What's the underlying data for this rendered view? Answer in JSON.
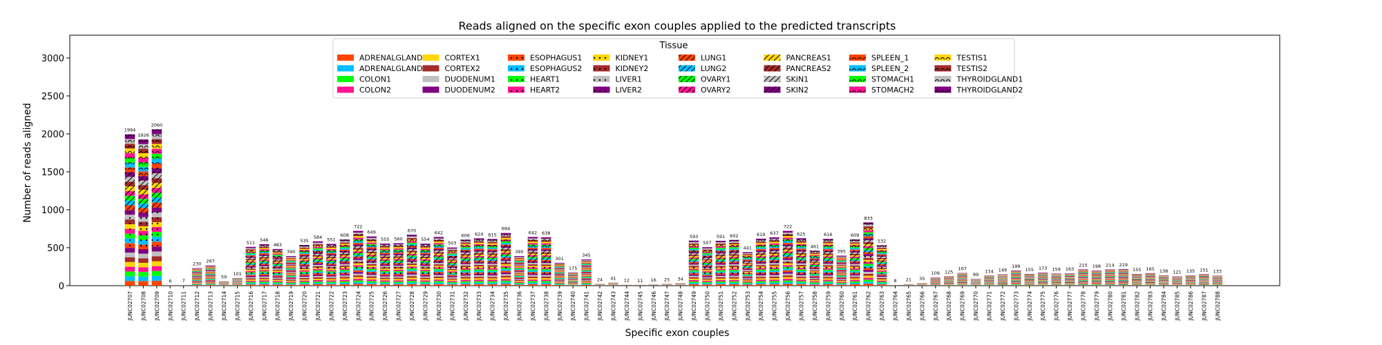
{
  "chart_data": {
    "type": "bar",
    "stacked": true,
    "title": "Reads aligned on the specific exon couples applied to the predicted transcripts",
    "xlabel": "Specific exon couples",
    "ylabel": "Number of reads aligned",
    "ylim": [
      0,
      3300
    ],
    "yticks": [
      0,
      500,
      1000,
      1500,
      2000,
      2500,
      3000
    ],
    "legend": {
      "title": "Tissue",
      "placement": "top-center",
      "columns": 8,
      "entries": [
        {
          "label": "ADRENALGLAND1",
          "color": "#FF4500"
        },
        {
          "label": "ADRENALGLAND2",
          "color": "#00BFFF"
        },
        {
          "label": "COLON1",
          "color": "#00FF00"
        },
        {
          "label": "COLON2",
          "color": "#FF1493"
        },
        {
          "label": "CORTEX1",
          "color": "#FFD700"
        },
        {
          "label": "CORTEX2",
          "color": "#A52A2A"
        },
        {
          "label": "DUODENUM1",
          "color": "#C0C0C0"
        },
        {
          "label": "DUODENUM2",
          "color": "#800080"
        },
        {
          "label": "ESOPHAGUS1",
          "color": "#FF4500"
        },
        {
          "label": "ESOPHAGUS2",
          "color": "#00BFFF"
        },
        {
          "label": "HEART1",
          "color": "#00FF00"
        },
        {
          "label": "HEART2",
          "color": "#FF1493"
        },
        {
          "label": "KIDNEY1",
          "color": "#FFD700"
        },
        {
          "label": "KIDNEY2",
          "color": "#A52A2A"
        },
        {
          "label": "LIVER1",
          "color": "#C0C0C0"
        },
        {
          "label": "LIVER2",
          "color": "#800080"
        },
        {
          "label": "LUNG1",
          "color": "#FF4500"
        },
        {
          "label": "LUNG2",
          "color": "#00BFFF"
        },
        {
          "label": "OVARY1",
          "color": "#00FF00"
        },
        {
          "label": "OVARY2",
          "color": "#FF1493"
        },
        {
          "label": "PANCREAS1",
          "color": "#FFD700"
        },
        {
          "label": "PANCREAS2",
          "color": "#A52A2A"
        },
        {
          "label": "SKIN1",
          "color": "#C0C0C0"
        },
        {
          "label": "SKIN2",
          "color": "#800080"
        },
        {
          "label": "SPLEEN_1",
          "color": "#FF4500"
        },
        {
          "label": "SPLEEN_2",
          "color": "#00BFFF"
        },
        {
          "label": "STOMACH1",
          "color": "#00FF00"
        },
        {
          "label": "STOMACH2",
          "color": "#FF1493"
        },
        {
          "label": "TESTIS1",
          "color": "#FFD700"
        },
        {
          "label": "TESTIS2",
          "color": "#A52A2A"
        },
        {
          "label": "THYROIDGLAND1",
          "color": "#C0C0C0"
        },
        {
          "label": "THYROIDGLAND2",
          "color": "#800080"
        }
      ]
    },
    "categories": [
      "JUNC02707",
      "JUNC02708",
      "JUNC02709",
      "JUNC02710",
      "JUNC02711",
      "JUNC02712",
      "JUNC02713",
      "JUNC02714",
      "JUNC02715",
      "JUNC02716",
      "JUNC02717",
      "JUNC02718",
      "JUNC02719",
      "JUNC02720",
      "JUNC02721",
      "JUNC02722",
      "JUNC02723",
      "JUNC02724",
      "JUNC02725",
      "JUNC02726",
      "JUNC02727",
      "JUNC02728",
      "JUNC02729",
      "JUNC02730",
      "JUNC02731",
      "JUNC02732",
      "JUNC02733",
      "JUNC02734",
      "JUNC02735",
      "JUNC02736",
      "JUNC02737",
      "JUNC02738",
      "JUNC02739",
      "JUNC02740",
      "JUNC02741",
      "JUNC02742",
      "JUNC02743",
      "JUNC02744",
      "JUNC02745",
      "JUNC02746",
      "JUNC02747",
      "JUNC02748",
      "JUNC02749",
      "JUNC02750",
      "JUNC02751",
      "JUNC02752",
      "JUNC02753",
      "JUNC02754",
      "JUNC02755",
      "JUNC02756",
      "JUNC02757",
      "JUNC02758",
      "JUNC02759",
      "JUNC02760",
      "JUNC02761",
      "JUNC02762",
      "JUNC02763",
      "JUNC02764",
      "JUNC02765",
      "JUNC02766",
      "JUNC02767",
      "JUNC02768",
      "JUNC02769",
      "JUNC02770",
      "JUNC02771",
      "JUNC02772",
      "JUNC02773",
      "JUNC02774",
      "JUNC02775",
      "JUNC02776",
      "JUNC02777",
      "JUNC02778",
      "JUNC02779",
      "JUNC02780",
      "JUNC02781",
      "JUNC02782",
      "JUNC02783",
      "JUNC02784",
      "JUNC02785",
      "JUNC02786",
      "JUNC02787",
      "JUNC02788"
    ],
    "totals": [
      1994,
      1926,
      2060,
      6,
      7,
      230,
      267,
      59,
      101,
      511,
      546,
      483,
      390,
      535,
      584,
      551,
      608,
      722,
      649,
      555,
      560,
      670,
      554,
      642,
      503,
      606,
      624,
      615,
      694,
      390,
      642,
      638,
      301,
      175,
      345,
      24,
      41,
      12,
      11,
      16,
      25,
      34,
      593,
      507,
      591,
      602,
      441,
      619,
      637,
      722,
      625,
      461,
      616,
      395,
      609,
      833,
      532,
      8,
      21,
      35,
      109,
      125,
      167,
      89,
      134,
      149,
      199,
      155,
      173,
      159,
      163,
      215,
      198,
      214,
      219,
      155,
      165,
      138,
      121,
      135,
      151,
      133
    ]
  }
}
